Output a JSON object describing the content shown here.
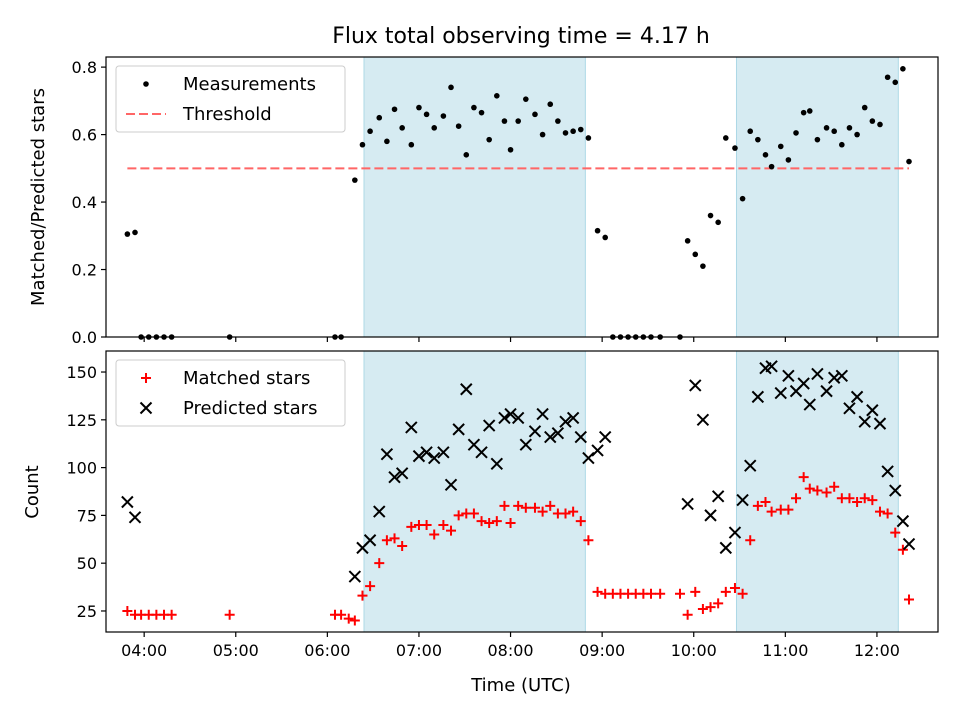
{
  "chart_data": {
    "title": "Flux total observing time = 4.17 h",
    "xlabel": "Time (UTC)",
    "x_ticks": [
      "04:00",
      "05:00",
      "06:00",
      "07:00",
      "08:00",
      "09:00",
      "10:00",
      "11:00",
      "12:00"
    ],
    "xlim": [
      "03:35",
      "12:40"
    ],
    "shaded_intervals": [
      [
        "06:24",
        "08:49"
      ],
      [
        "10:28",
        "12:14"
      ]
    ],
    "shade_color": "#add8e6",
    "panels": [
      {
        "type": "scatter",
        "ylabel": "Matched/Predicted stars",
        "ylim": [
          0,
          0.83
        ],
        "y_ticks": [
          "0.0",
          "0.2",
          "0.4",
          "0.6",
          "0.8"
        ],
        "legend_position": "upper left",
        "series": [
          {
            "name": "Measurements",
            "marker": "dot",
            "color": "#000000",
            "points": [
              [
                "03:49",
                0.305
              ],
              [
                "03:54",
                0.31
              ],
              [
                "03:58",
                0.0
              ],
              [
                "04:03",
                0.0
              ],
              [
                "04:08",
                0.0
              ],
              [
                "04:13",
                0.0
              ],
              [
                "04:18",
                0.0
              ],
              [
                "04:56",
                0.0
              ],
              [
                "06:05",
                0.0
              ],
              [
                "06:09",
                0.0
              ],
              [
                "06:18",
                0.465
              ],
              [
                "06:23",
                0.57
              ],
              [
                "06:28",
                0.61
              ],
              [
                "06:34",
                0.65
              ],
              [
                "06:39",
                0.58
              ],
              [
                "06:44",
                0.675
              ],
              [
                "06:49",
                0.62
              ],
              [
                "06:55",
                0.57
              ],
              [
                "07:00",
                0.68
              ],
              [
                "07:05",
                0.66
              ],
              [
                "07:10",
                0.62
              ],
              [
                "07:16",
                0.655
              ],
              [
                "07:21",
                0.74
              ],
              [
                "07:26",
                0.625
              ],
              [
                "07:31",
                0.54
              ],
              [
                "07:36",
                0.68
              ],
              [
                "07:41",
                0.665
              ],
              [
                "07:46",
                0.585
              ],
              [
                "07:51",
                0.715
              ],
              [
                "07:56",
                0.64
              ],
              [
                "08:00",
                0.555
              ],
              [
                "08:05",
                0.64
              ],
              [
                "08:10",
                0.705
              ],
              [
                "08:16",
                0.66
              ],
              [
                "08:21",
                0.6
              ],
              [
                "08:26",
                0.69
              ],
              [
                "08:31",
                0.64
              ],
              [
                "08:36",
                0.605
              ],
              [
                "08:41",
                0.61
              ],
              [
                "08:46",
                0.615
              ],
              [
                "08:51",
                0.59
              ],
              [
                "08:57",
                0.315
              ],
              [
                "09:02",
                0.295
              ],
              [
                "09:07",
                0.0
              ],
              [
                "09:12",
                0.0
              ],
              [
                "09:17",
                0.0
              ],
              [
                "09:22",
                0.0
              ],
              [
                "09:27",
                0.0
              ],
              [
                "09:32",
                0.0
              ],
              [
                "09:38",
                0.0
              ],
              [
                "09:51",
                0.0
              ],
              [
                "09:56",
                0.285
              ],
              [
                "10:01",
                0.245
              ],
              [
                "10:06",
                0.21
              ],
              [
                "10:11",
                0.36
              ],
              [
                "10:16",
                0.34
              ],
              [
                "10:21",
                0.59
              ],
              [
                "10:27",
                0.56
              ],
              [
                "10:32",
                0.41
              ],
              [
                "10:37",
                0.61
              ],
              [
                "10:42",
                0.585
              ],
              [
                "10:47",
                0.54
              ],
              [
                "10:51",
                0.505
              ],
              [
                "10:57",
                0.565
              ],
              [
                "11:02",
                0.525
              ],
              [
                "11:07",
                0.605
              ],
              [
                "11:12",
                0.665
              ],
              [
                "11:16",
                0.67
              ],
              [
                "11:21",
                0.585
              ],
              [
                "11:27",
                0.62
              ],
              [
                "11:32",
                0.61
              ],
              [
                "11:37",
                0.57
              ],
              [
                "11:42",
                0.62
              ],
              [
                "11:47",
                0.6
              ],
              [
                "11:52",
                0.68
              ],
              [
                "11:57",
                0.64
              ],
              [
                "12:02",
                0.63
              ],
              [
                "12:07",
                0.77
              ],
              [
                "12:12",
                0.755
              ],
              [
                "12:17",
                0.795
              ],
              [
                "12:21",
                0.52
              ]
            ]
          },
          {
            "name": "Threshold",
            "type": "dashed-line",
            "color": "#ff6666",
            "y": 0.5,
            "x_range": [
              "03:49",
              "12:21"
            ]
          }
        ]
      },
      {
        "type": "scatter",
        "ylabel": "Count",
        "ylim": [
          14,
          161
        ],
        "y_ticks": [
          "25",
          "50",
          "75",
          "100",
          "125",
          "150"
        ],
        "legend_position": "upper left",
        "series": [
          {
            "name": "Matched stars",
            "marker": "plus",
            "color": "#ff0000",
            "points": [
              [
                "03:49",
                25
              ],
              [
                "03:54",
                23
              ],
              [
                "03:58",
                23
              ],
              [
                "04:03",
                23
              ],
              [
                "04:08",
                23
              ],
              [
                "04:13",
                23
              ],
              [
                "04:18",
                23
              ],
              [
                "04:56",
                23
              ],
              [
                "06:05",
                23
              ],
              [
                "06:09",
                23
              ],
              [
                "06:14",
                21
              ],
              [
                "06:18",
                20
              ],
              [
                "06:23",
                33
              ],
              [
                "06:28",
                38
              ],
              [
                "06:34",
                50
              ],
              [
                "06:39",
                62
              ],
              [
                "06:44",
                63
              ],
              [
                "06:49",
                59
              ],
              [
                "06:55",
                69
              ],
              [
                "07:00",
                70
              ],
              [
                "07:05",
                70
              ],
              [
                "07:10",
                65
              ],
              [
                "07:16",
                70
              ],
              [
                "07:21",
                67
              ],
              [
                "07:26",
                75
              ],
              [
                "07:31",
                76
              ],
              [
                "07:36",
                76
              ],
              [
                "07:41",
                72
              ],
              [
                "07:46",
                71
              ],
              [
                "07:51",
                72
              ],
              [
                "07:56",
                80
              ],
              [
                "08:00",
                71
              ],
              [
                "08:05",
                80
              ],
              [
                "08:10",
                79
              ],
              [
                "08:16",
                79
              ],
              [
                "08:21",
                77
              ],
              [
                "08:26",
                80
              ],
              [
                "08:31",
                76
              ],
              [
                "08:36",
                76
              ],
              [
                "08:41",
                77
              ],
              [
                "08:46",
                72
              ],
              [
                "08:51",
                62
              ],
              [
                "08:57",
                35
              ],
              [
                "09:02",
                34
              ],
              [
                "09:07",
                34
              ],
              [
                "09:12",
                34
              ],
              [
                "09:17",
                34
              ],
              [
                "09:22",
                34
              ],
              [
                "09:27",
                34
              ],
              [
                "09:32",
                34
              ],
              [
                "09:38",
                34
              ],
              [
                "09:51",
                34
              ],
              [
                "09:56",
                23
              ],
              [
                "10:01",
                35
              ],
              [
                "10:06",
                26
              ],
              [
                "10:11",
                27
              ],
              [
                "10:16",
                29
              ],
              [
                "10:21",
                35
              ],
              [
                "10:27",
                37
              ],
              [
                "10:32",
                34
              ],
              [
                "10:37",
                62
              ],
              [
                "10:42",
                80
              ],
              [
                "10:47",
                82
              ],
              [
                "10:51",
                77
              ],
              [
                "10:57",
                78
              ],
              [
                "11:02",
                78
              ],
              [
                "11:07",
                84
              ],
              [
                "11:12",
                95
              ],
              [
                "11:16",
                89
              ],
              [
                "11:21",
                88
              ],
              [
                "11:27",
                87
              ],
              [
                "11:32",
                90
              ],
              [
                "11:37",
                84
              ],
              [
                "11:42",
                84
              ],
              [
                "11:47",
                82
              ],
              [
                "11:52",
                84
              ],
              [
                "11:57",
                83
              ],
              [
                "12:02",
                77
              ],
              [
                "12:07",
                76
              ],
              [
                "12:12",
                66
              ],
              [
                "12:17",
                57
              ],
              [
                "12:21",
                31
              ]
            ]
          },
          {
            "name": "Predicted stars",
            "marker": "x",
            "color": "#000000",
            "points": [
              [
                "03:49",
                82
              ],
              [
                "03:54",
                74
              ],
              [
                "06:18",
                43
              ],
              [
                "06:23",
                58
              ],
              [
                "06:28",
                62
              ],
              [
                "06:34",
                77
              ],
              [
                "06:39",
                107
              ],
              [
                "06:44",
                95
              ],
              [
                "06:49",
                97
              ],
              [
                "06:55",
                121
              ],
              [
                "07:00",
                106
              ],
              [
                "07:05",
                108
              ],
              [
                "07:10",
                105
              ],
              [
                "07:16",
                108
              ],
              [
                "07:21",
                91
              ],
              [
                "07:26",
                120
              ],
              [
                "07:31",
                141
              ],
              [
                "07:36",
                112
              ],
              [
                "07:41",
                108
              ],
              [
                "07:46",
                122
              ],
              [
                "07:51",
                102
              ],
              [
                "07:56",
                126
              ],
              [
                "08:00",
                128
              ],
              [
                "08:05",
                126
              ],
              [
                "08:10",
                112
              ],
              [
                "08:16",
                119
              ],
              [
                "08:21",
                128
              ],
              [
                "08:26",
                116
              ],
              [
                "08:31",
                118
              ],
              [
                "08:36",
                124
              ],
              [
                "08:41",
                126
              ],
              [
                "08:46",
                116
              ],
              [
                "08:51",
                105
              ],
              [
                "08:57",
                109
              ],
              [
                "09:02",
                116
              ],
              [
                "09:56",
                81
              ],
              [
                "10:01",
                143
              ],
              [
                "10:06",
                125
              ],
              [
                "10:11",
                75
              ],
              [
                "10:16",
                85
              ],
              [
                "10:21",
                58
              ],
              [
                "10:27",
                66
              ],
              [
                "10:32",
                83
              ],
              [
                "10:37",
                101
              ],
              [
                "10:42",
                137
              ],
              [
                "10:47",
                152
              ],
              [
                "10:51",
                153
              ],
              [
                "10:57",
                139
              ],
              [
                "11:02",
                148
              ],
              [
                "11:07",
                140
              ],
              [
                "11:12",
                144
              ],
              [
                "11:16",
                133
              ],
              [
                "11:21",
                149
              ],
              [
                "11:27",
                140
              ],
              [
                "11:32",
                147
              ],
              [
                "11:37",
                148
              ],
              [
                "11:42",
                131
              ],
              [
                "11:47",
                137
              ],
              [
                "11:52",
                124
              ],
              [
                "11:57",
                130
              ],
              [
                "12:02",
                123
              ],
              [
                "12:07",
                98
              ],
              [
                "12:12",
                88
              ],
              [
                "12:17",
                72
              ],
              [
                "12:21",
                60
              ]
            ]
          }
        ]
      }
    ]
  }
}
